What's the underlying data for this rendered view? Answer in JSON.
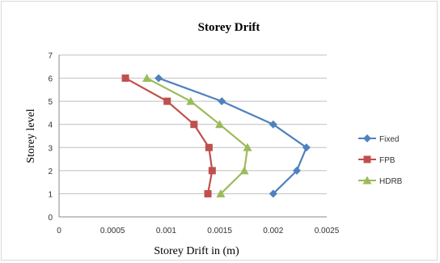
{
  "chart_data": {
    "type": "line",
    "title": "Storey Drift",
    "xlabel": "Storey Drift in (m)",
    "ylabel": "Storey level",
    "xlim": [
      0,
      0.0025
    ],
    "ylim": [
      0,
      7
    ],
    "x_ticks": [
      "0",
      "0.0005",
      "0.001",
      "0.0015",
      "0.002",
      "0.0025"
    ],
    "y_ticks": [
      "0",
      "1",
      "2",
      "3",
      "4",
      "5",
      "6",
      "7"
    ],
    "grid": "horizontal",
    "legend": "right",
    "series": [
      {
        "name": "Fixed",
        "color": "#4F81BD",
        "marker": "diamond",
        "points": [
          [
            0.002,
            1
          ],
          [
            0.00222,
            2
          ],
          [
            0.00231,
            3
          ],
          [
            0.002,
            4
          ],
          [
            0.00152,
            5
          ],
          [
            0.00093,
            6
          ]
        ]
      },
      {
        "name": "FPB",
        "color": "#C0504D",
        "marker": "square",
        "points": [
          [
            0.00139,
            1
          ],
          [
            0.00143,
            2
          ],
          [
            0.0014,
            3
          ],
          [
            0.00126,
            4
          ],
          [
            0.00101,
            5
          ],
          [
            0.00062,
            6
          ]
        ]
      },
      {
        "name": "HDRB",
        "color": "#9BBB59",
        "marker": "triangle",
        "points": [
          [
            0.00151,
            1
          ],
          [
            0.00173,
            2
          ],
          [
            0.00176,
            3
          ],
          [
            0.0015,
            4
          ],
          [
            0.00123,
            5
          ],
          [
            0.00082,
            6
          ]
        ]
      }
    ]
  }
}
